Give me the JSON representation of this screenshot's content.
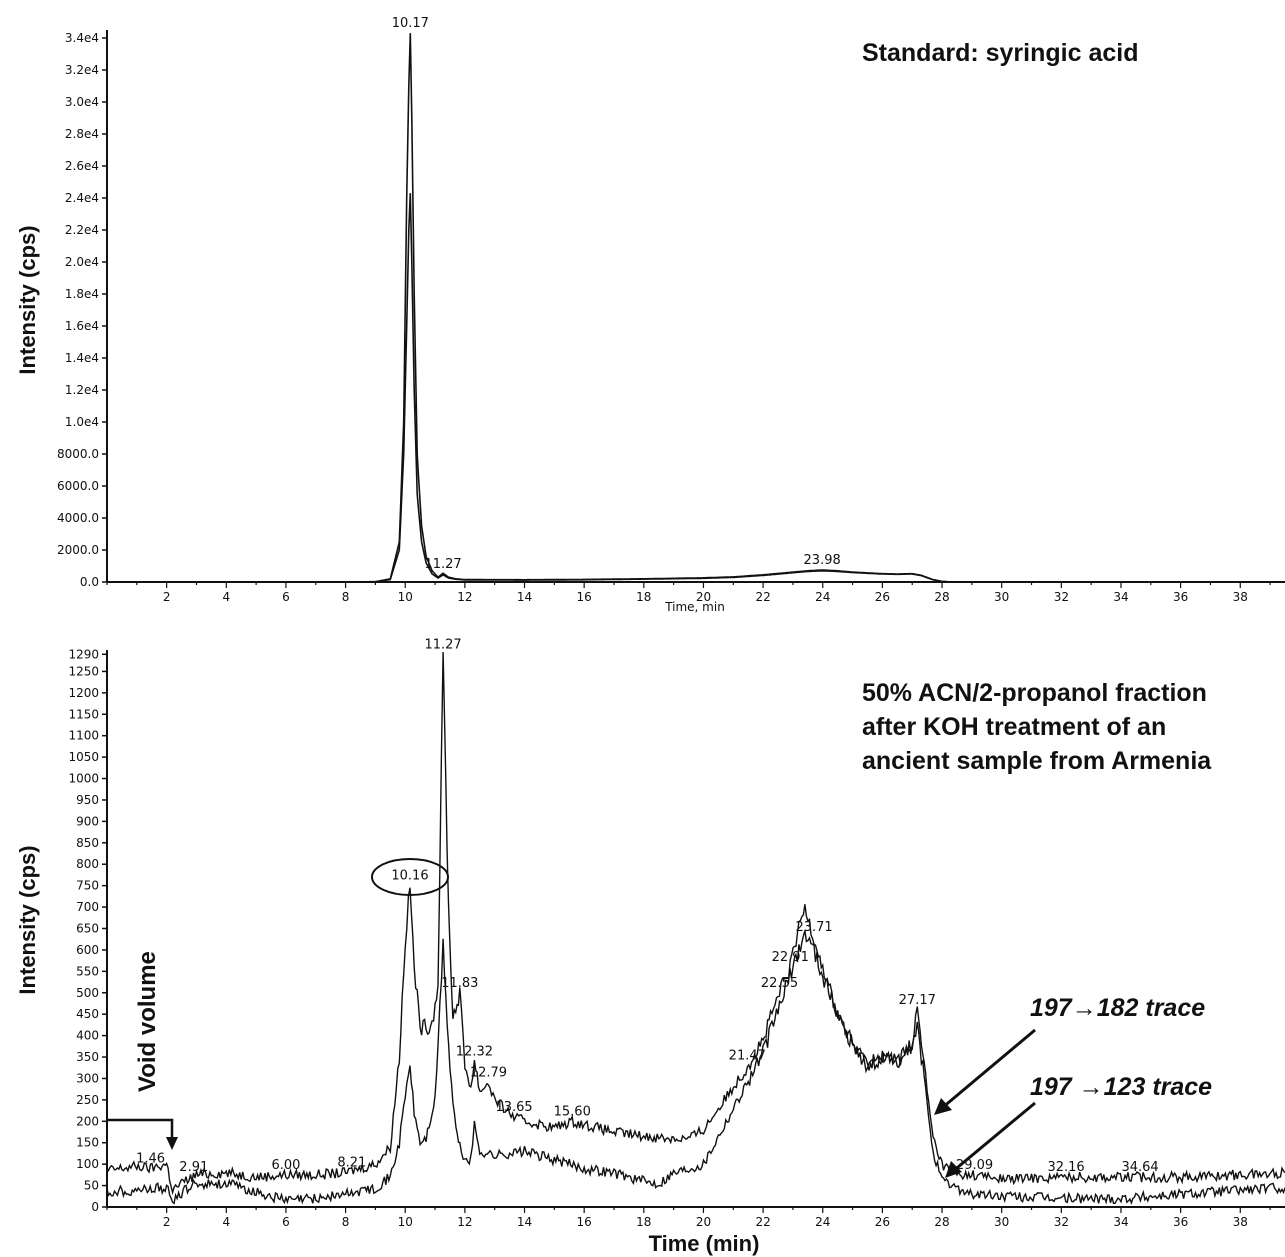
{
  "chart_data": [
    {
      "type": "line",
      "title": "Standard: syringic acid",
      "xlabel": "Time, min",
      "ylabel": "Intensity (cps)",
      "xlim": [
        0,
        39.5
      ],
      "ylim": [
        0,
        34500
      ],
      "x_ticks": [
        "2",
        "4",
        "6",
        "8",
        "10",
        "12",
        "14",
        "16",
        "18",
        "20",
        "22",
        "24",
        "26",
        "28",
        "30",
        "32",
        "34",
        "36",
        "38"
      ],
      "y_ticks": [
        "0.0",
        "2000.0",
        "4000.0",
        "6000.0",
        "8000.0",
        "1.0e4",
        "1.2e4",
        "1.4e4",
        "1.6e4",
        "1.8e4",
        "2.0e4",
        "2.2e4",
        "2.4e4",
        "2.6e4",
        "2.8e4",
        "3.0e4",
        "3.2e4",
        "3.4e4"
      ],
      "peak_labels": [
        {
          "x": 10.17,
          "y": 34300,
          "label": "10.17"
        },
        {
          "x": 11.27,
          "y": 500,
          "label": "11.27"
        },
        {
          "x": 23.98,
          "y": 750,
          "label": "23.98"
        }
      ],
      "series": [
        {
          "x": [
            0,
            8,
            9,
            9.5,
            9.8,
            9.95,
            10.05,
            10.12,
            10.17,
            10.22,
            10.3,
            10.4,
            10.55,
            10.7,
            10.9,
            11.1,
            11.27,
            11.45,
            11.7,
            12,
            14,
            16,
            18,
            20,
            21,
            22,
            23,
            23.5,
            23.98,
            24.5,
            25,
            26,
            26.5,
            27,
            27.3,
            27.7,
            28,
            28.3,
            30,
            39.5
          ],
          "y": [
            0,
            0,
            20,
            200,
            2500,
            10000,
            24000,
            31000,
            34300,
            29000,
            18000,
            8000,
            3500,
            1600,
            700,
            300,
            550,
            300,
            200,
            150,
            140,
            160,
            200,
            260,
            320,
            450,
            620,
            700,
            750,
            700,
            620,
            520,
            500,
            520,
            420,
            150,
            40,
            0,
            0,
            0
          ]
        },
        {
          "x": [
            0,
            8,
            9,
            9.5,
            9.8,
            9.95,
            10.05,
            10.12,
            10.17,
            10.22,
            10.3,
            10.4,
            10.55,
            10.7,
            10.9,
            11.1,
            11.27,
            11.45,
            11.7,
            12,
            14,
            16,
            18,
            20,
            21,
            22,
            23,
            23.5,
            23.98,
            24.5,
            25,
            26,
            26.5,
            27,
            27.3,
            27.7,
            28,
            28.3,
            30,
            39.5
          ],
          "y": [
            0,
            0,
            15,
            150,
            2000,
            8000,
            16000,
            22000,
            24300,
            20000,
            12000,
            5500,
            2500,
            1200,
            500,
            250,
            450,
            250,
            170,
            130,
            120,
            140,
            180,
            230,
            290,
            410,
            580,
            660,
            700,
            660,
            590,
            500,
            480,
            500,
            400,
            140,
            35,
            0,
            0,
            0
          ]
        }
      ]
    },
    {
      "type": "line",
      "title": "50% ACN/2-propanol fraction after KOH treatment of an ancient sample from Armenia",
      "title_lines": [
        "50% ACN/2-propanol fraction",
        "after KOH treatment of an",
        "ancient sample from Armenia"
      ],
      "xlabel": "Time (min)",
      "ylabel": "Intensity (cps)",
      "xlim": [
        0,
        39.5
      ],
      "ylim": [
        0,
        1300
      ],
      "x_ticks": [
        "2",
        "4",
        "6",
        "8",
        "10",
        "12",
        "14",
        "16",
        "18",
        "20",
        "22",
        "24",
        "26",
        "28",
        "30",
        "32",
        "34",
        "36",
        "38"
      ],
      "y_ticks": [
        "0",
        "50",
        "100",
        "150",
        "200",
        "250",
        "300",
        "350",
        "400",
        "450",
        "500",
        "550",
        "600",
        "650",
        "700",
        "750",
        "800",
        "850",
        "900",
        "950",
        "1000",
        "1050",
        "1100",
        "1150",
        "1200",
        "1250",
        "1290"
      ],
      "annotations": {
        "void_volume": "Void volume",
        "trace_182": "197→182  trace",
        "trace_123": "197 →123 trace"
      },
      "peak_labels": [
        {
          "x": 1.46,
          "y": 90,
          "label": "1.46"
        },
        {
          "x": 2.91,
          "y": 70,
          "label": "2.91"
        },
        {
          "x": 6.0,
          "y": 75,
          "label": "6.00"
        },
        {
          "x": 8.21,
          "y": 80,
          "label": "8.21"
        },
        {
          "x": 10.16,
          "y": 750,
          "label": "10.16"
        },
        {
          "x": 11.27,
          "y": 1290,
          "label": "11.27"
        },
        {
          "x": 11.83,
          "y": 500,
          "label": "11.83"
        },
        {
          "x": 12.32,
          "y": 340,
          "label": "12.32"
        },
        {
          "x": 12.79,
          "y": 290,
          "label": "12.79"
        },
        {
          "x": 13.65,
          "y": 210,
          "label": "13.65"
        },
        {
          "x": 15.6,
          "y": 200,
          "label": "15.60"
        },
        {
          "x": 21.47,
          "y": 330,
          "label": "21.47"
        },
        {
          "x": 22.55,
          "y": 500,
          "label": "22.55"
        },
        {
          "x": 22.91,
          "y": 560,
          "label": "22.91"
        },
        {
          "x": 23.71,
          "y": 630,
          "label": "23.71"
        },
        {
          "x": 27.17,
          "y": 460,
          "label": "27.17"
        },
        {
          "x": 29.09,
          "y": 75,
          "label": "29.09"
        },
        {
          "x": 32.16,
          "y": 70,
          "label": "32.16"
        },
        {
          "x": 34.64,
          "y": 70,
          "label": "34.64"
        }
      ],
      "series": [
        {
          "name": "197→182  trace",
          "x": [
            0,
            1,
            1.46,
            2,
            2.2,
            2.6,
            3,
            4,
            5,
            6,
            7,
            8,
            8.21,
            9,
            9.5,
            9.8,
            10,
            10.16,
            10.3,
            10.5,
            10.7,
            10.9,
            11.1,
            11.27,
            11.45,
            11.6,
            11.83,
            12,
            12.2,
            12.32,
            12.5,
            12.79,
            13,
            13.65,
            14,
            15,
            15.6,
            17,
            18,
            19,
            19.5,
            20,
            21,
            21.47,
            22,
            22.55,
            22.91,
            23.2,
            23.4,
            23.71,
            24,
            24.5,
            25,
            25.5,
            26,
            26.5,
            27,
            27.17,
            27.4,
            27.7,
            28,
            28.5,
            29.09,
            30,
            32.16,
            34.64,
            36,
            38,
            39.5
          ],
          "y": [
            85,
            95,
            90,
            100,
            40,
            60,
            75,
            80,
            70,
            75,
            75,
            80,
            85,
            100,
            140,
            350,
            620,
            750,
            560,
            420,
            420,
            430,
            520,
            1290,
            700,
            440,
            500,
            330,
            280,
            340,
            270,
            290,
            250,
            210,
            200,
            185,
            200,
            175,
            165,
            160,
            160,
            180,
            280,
            330,
            390,
            500,
            560,
            650,
            700,
            630,
            560,
            450,
            380,
            330,
            350,
            340,
            380,
            460,
            330,
            160,
            100,
            75,
            75,
            65,
            70,
            70,
            70,
            75,
            80
          ]
        },
        {
          "name": "197 →123 trace",
          "x": [
            0,
            1,
            2,
            2.2,
            2.6,
            3,
            4,
            5,
            6,
            7,
            8,
            9,
            9.5,
            9.8,
            10,
            10.16,
            10.3,
            10.5,
            10.7,
            11,
            11.27,
            11.5,
            11.7,
            11.83,
            12,
            12.2,
            12.32,
            12.5,
            13,
            14,
            15,
            16,
            17,
            18,
            18.5,
            19,
            20,
            21,
            22,
            22.55,
            23,
            23.4,
            23.71,
            24,
            24.5,
            25,
            25.5,
            26,
            26.5,
            27,
            27.17,
            27.4,
            27.7,
            28,
            29,
            30,
            32,
            34,
            36,
            38,
            39.5
          ],
          "y": [
            35,
            40,
            45,
            10,
            40,
            55,
            55,
            35,
            15,
            20,
            30,
            45,
            70,
            150,
            260,
            330,
            220,
            150,
            160,
            250,
            610,
            320,
            180,
            140,
            110,
            110,
            190,
            130,
            120,
            130,
            110,
            90,
            80,
            60,
            55,
            80,
            100,
            230,
            360,
            470,
            560,
            640,
            600,
            540,
            450,
            380,
            330,
            350,
            340,
            370,
            420,
            300,
            130,
            60,
            30,
            25,
            20,
            20,
            30,
            40,
            45
          ]
        }
      ]
    }
  ]
}
